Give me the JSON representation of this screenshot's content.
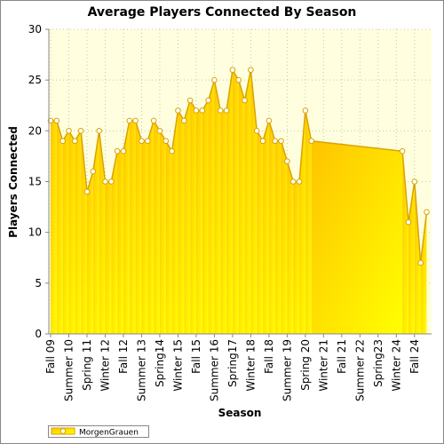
{
  "chart_data": {
    "type": "area",
    "title": "Average Players Connected By Season",
    "x_label": "Season",
    "y_label": "Players Connected",
    "categories": [
      "Fall 09",
      null,
      null,
      "Summer 10",
      null,
      null,
      "Spring 11",
      null,
      null,
      "Winter 12",
      null,
      null,
      "Fall 12",
      null,
      null,
      "Summer 13",
      null,
      null,
      "Spring14",
      null,
      null,
      "Winter 15",
      null,
      null,
      "Fall 15",
      null,
      null,
      "Summer 16",
      null,
      null,
      "Spring17",
      null,
      null,
      "Winter 18",
      null,
      null,
      "Fall 18",
      null,
      null,
      "Summer 19",
      null,
      null,
      "Spring 20",
      null,
      null,
      "Winter 21",
      null,
      null,
      "Fall 21",
      null,
      null,
      "Summer 22",
      null,
      null,
      "Spring23",
      null,
      null,
      "Winter 24",
      null,
      null,
      "Fall 24",
      null,
      null
    ],
    "series": [
      {
        "name": "MorgenGrauen",
        "color": "#d9a300",
        "values": [
          21,
          21,
          19,
          20,
          19,
          20,
          14,
          16,
          20,
          15,
          15,
          18,
          18,
          21,
          21,
          19,
          19,
          21,
          20,
          19,
          18,
          22,
          21,
          23,
          22,
          22,
          23,
          25,
          22,
          22,
          26,
          25,
          23,
          26,
          20,
          19,
          21,
          19,
          19,
          17,
          15,
          15,
          22,
          19,
          null,
          null,
          null,
          null,
          null,
          null,
          null,
          null,
          null,
          null,
          null,
          null,
          null,
          null,
          18,
          11,
          15,
          7,
          12
        ]
      }
    ],
    "ylim": [
      0,
      30
    ],
    "yticks": [
      0,
      5,
      10,
      15,
      20,
      25,
      30
    ],
    "grid": true,
    "legend": "bottom-left"
  }
}
